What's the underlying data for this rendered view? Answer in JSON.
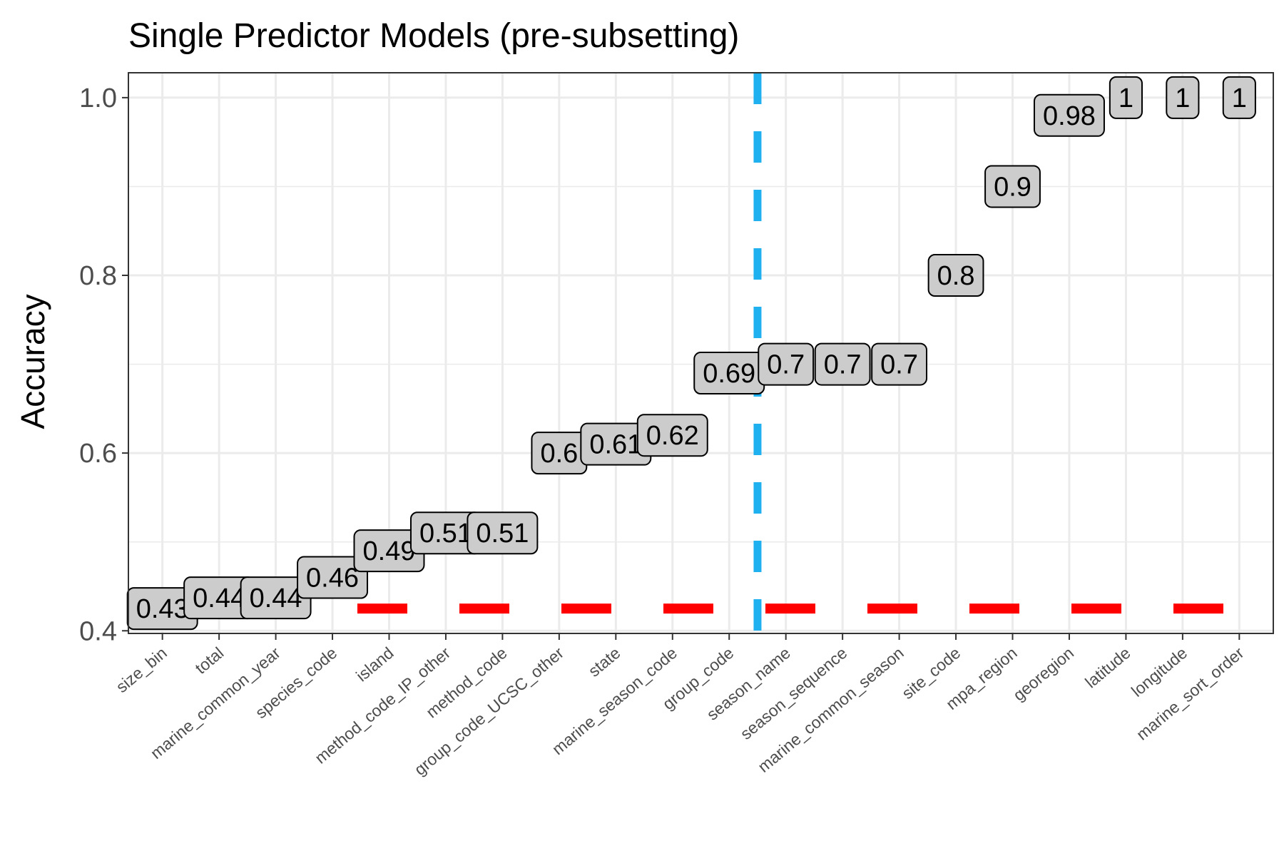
{
  "chart_data": {
    "type": "scatter",
    "title": "Single Predictor Models (pre-subsetting)",
    "xlabel": "",
    "ylabel": "Accuracy",
    "ylim": [
      0.397,
      1.028
    ],
    "yticks": [
      0.4,
      0.6,
      0.8,
      1.0
    ],
    "ytick_labels": [
      "0.4",
      "0.6",
      "0.8",
      "1.0"
    ],
    "grid": true,
    "categories": [
      "size_bin",
      "total",
      "marine_common_year",
      "species_code",
      "island",
      "method_code_IP_other",
      "method_code",
      "group_code_UCSC_other",
      "state",
      "marine_season_code",
      "group_code",
      "season_name",
      "season_sequence",
      "marine_common_season",
      "site_code",
      "mpa_region",
      "georegion",
      "latitude",
      "longitude",
      "marine_sort_order"
    ],
    "values": [
      0.425,
      0.437,
      0.437,
      0.46,
      0.49,
      0.51,
      0.51,
      0.6,
      0.61,
      0.62,
      0.69,
      0.7,
      0.7,
      0.7,
      0.8,
      0.9,
      0.98,
      1.0,
      1.0,
      1.0
    ],
    "labels": [
      "0.43",
      "0.44",
      "0.44",
      "0.46",
      "0.49",
      "0.51",
      "0.51",
      "0.6",
      "0.61",
      "0.62",
      "0.69",
      "0.7",
      "0.7",
      "0.7",
      "0.8",
      "0.9",
      "0.98",
      "1",
      "1",
      "1"
    ],
    "reference_lines": {
      "horizontal": {
        "y": 0.425,
        "color": "#ff0000",
        "style": "dashed"
      },
      "vertical": {
        "x_position": 11.5,
        "color": "#1fb0f0",
        "style": "dashed"
      }
    },
    "colors": {
      "label_fill": "#cccccc",
      "label_border": "#000000",
      "grid": "#ebebeb",
      "panel_border": "#333333"
    }
  }
}
